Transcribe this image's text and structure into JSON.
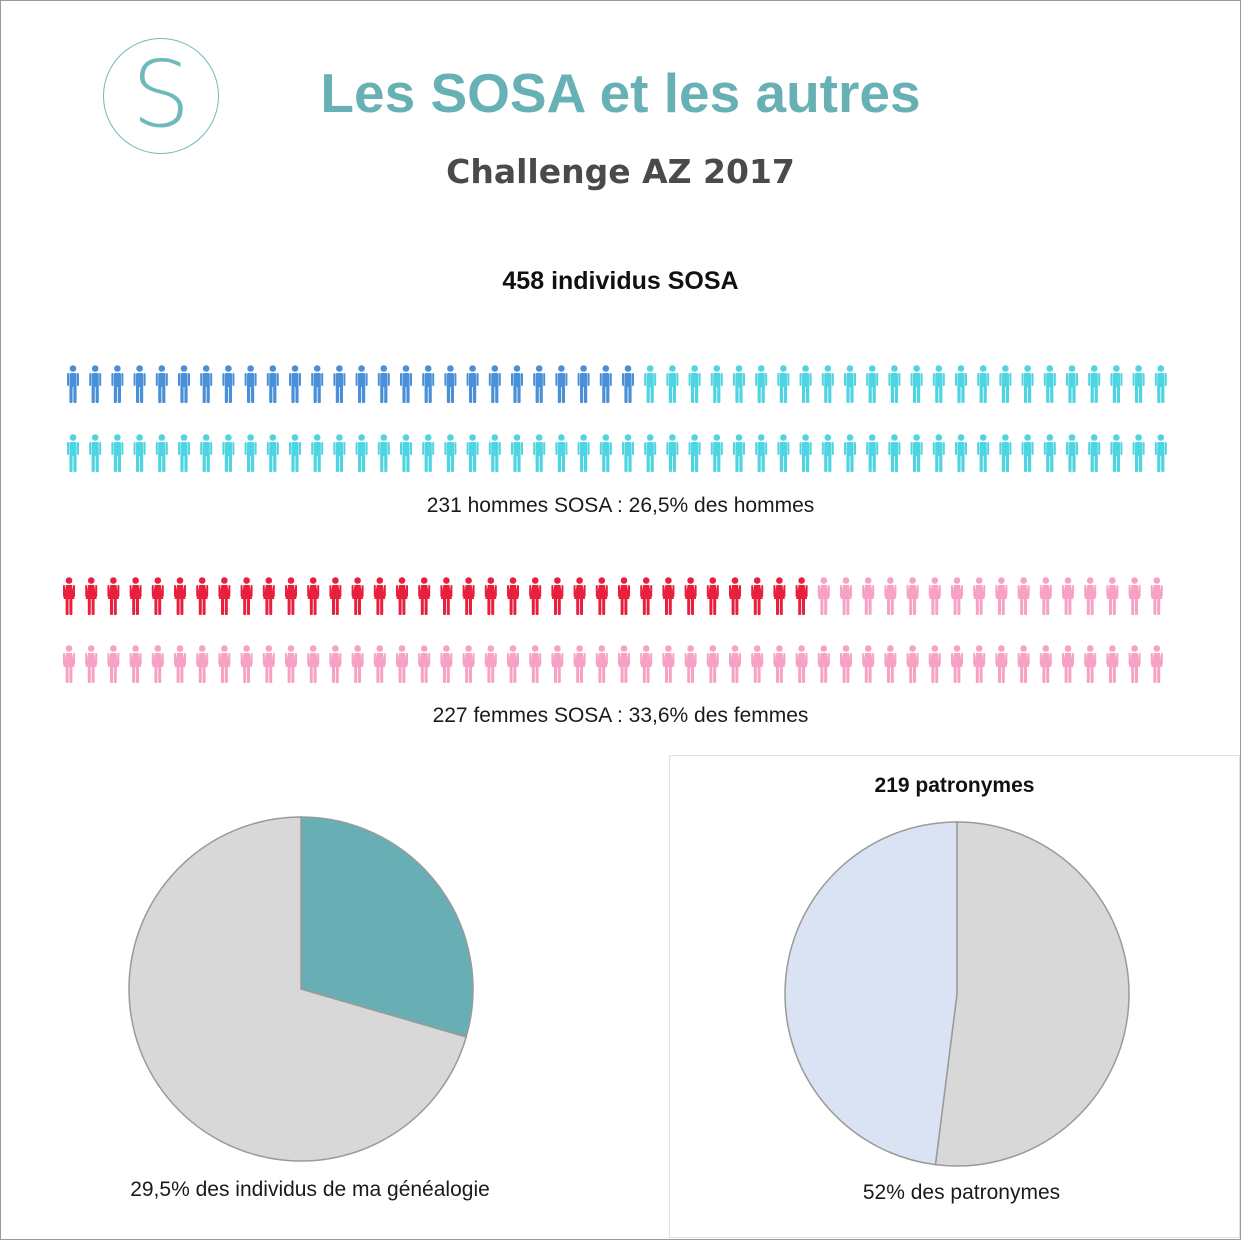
{
  "header": {
    "logo_letter": "S",
    "title": "Les SOSA et les autres",
    "subtitle": "Challenge AZ 2017"
  },
  "colors": {
    "title": "#67b1b5",
    "men_sosa": "#4a90d9",
    "men_other": "#4fd4e2",
    "women_sosa": "#e8203d",
    "women_other": "#f7a2c4",
    "pie_accent": "#67afb4",
    "pie_rest": "#d8d8d8",
    "pie2_slice": "#dae3f3"
  },
  "icons": {
    "men": "man-figure-icon",
    "women": "woman-figure-icon"
  },
  "chart_data": [
    {
      "type": "pictogram",
      "title": "458 individus SOSA",
      "groups": [
        {
          "name": "hommes",
          "caption": "231 hommes SOSA : 26,5% des hommes",
          "highlighted_icons": 26,
          "total_icons": 100,
          "icon": "man-figure-icon"
        },
        {
          "name": "femmes",
          "caption": "227 femmes SOSA : 33,6% des femmes",
          "highlighted_icons": 34,
          "total_icons": 100,
          "icon": "woman-figure-icon"
        }
      ]
    },
    {
      "type": "pie",
      "caption": "29,5% des individus de ma généalogie",
      "slices": [
        {
          "value": 29.5
        },
        {
          "value": 70.5
        }
      ]
    },
    {
      "type": "pie",
      "title": "219 patronymes",
      "caption": "52% des patronymes",
      "slices": [
        {
          "value": 52
        },
        {
          "value": 48
        }
      ]
    }
  ]
}
